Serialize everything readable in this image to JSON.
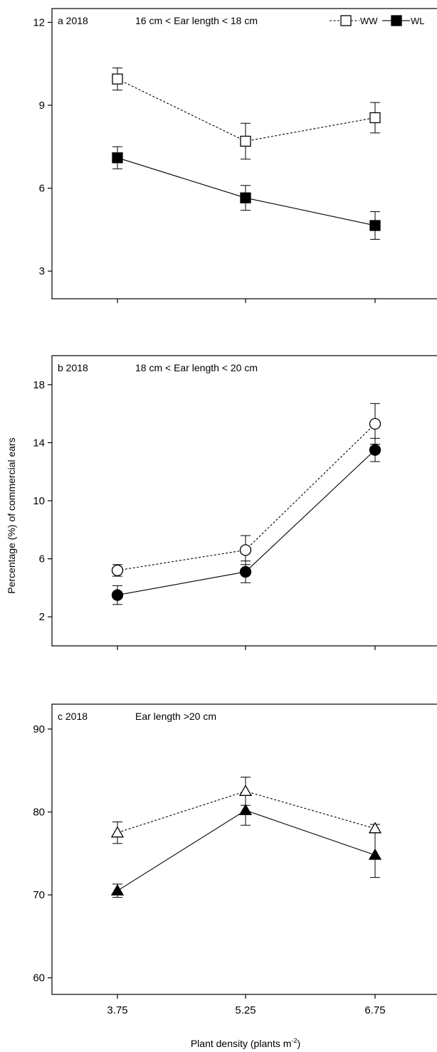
{
  "figure": {
    "ylabel": "Percentage (%) of commercial ears",
    "xlabel_main": "Plant density (plants m",
    "xlabel_sup": "-2",
    "xlabel_end": ")"
  },
  "chart_data": [
    {
      "type": "line",
      "panel": "a 2018",
      "title": "16 cm < Ear length < 18 cm",
      "x": [
        3.75,
        5.25,
        6.75
      ],
      "xticks": [
        "3.75",
        "5.25",
        "6.75"
      ],
      "ylim": [
        2,
        12.5
      ],
      "yticks": [
        3,
        6,
        9,
        12
      ],
      "legend": "top-right",
      "legend_entries": [
        "WW",
        "WL"
      ],
      "marker": "square",
      "series": [
        {
          "name": "WW",
          "style": "dashed",
          "filled": false,
          "values": [
            9.95,
            7.7,
            8.55
          ],
          "errors": [
            0.4,
            0.65,
            0.55
          ]
        },
        {
          "name": "WL",
          "style": "solid",
          "filled": true,
          "values": [
            7.1,
            5.65,
            4.65
          ],
          "errors": [
            0.4,
            0.45,
            0.5
          ]
        }
      ]
    },
    {
      "type": "line",
      "panel": "b 2018",
      "title": "18 cm < Ear length < 20 cm",
      "x": [
        3.75,
        5.25,
        6.75
      ],
      "xticks": [
        "3.75",
        "5.25",
        "6.75"
      ],
      "ylim": [
        0,
        20
      ],
      "yticks": [
        2,
        6,
        10,
        14,
        18
      ],
      "marker": "circle",
      "series": [
        {
          "name": "WW",
          "style": "dashed",
          "filled": false,
          "values": [
            5.2,
            6.6,
            15.3
          ],
          "errors": [
            0.4,
            1.0,
            1.4
          ]
        },
        {
          "name": "WL",
          "style": "solid",
          "filled": true,
          "values": [
            3.5,
            5.1,
            13.5
          ],
          "errors": [
            0.65,
            0.75,
            0.8
          ]
        }
      ]
    },
    {
      "type": "line",
      "panel": "c 2018",
      "title": "Ear length >20 cm",
      "x": [
        3.75,
        5.25,
        6.75
      ],
      "xticks": [
        "3.75",
        "5.25",
        "6.75"
      ],
      "ylim": [
        58,
        93
      ],
      "yticks": [
        60,
        70,
        80,
        90
      ],
      "marker": "triangle",
      "series": [
        {
          "name": "WW",
          "style": "dashed",
          "filled": false,
          "values": [
            77.5,
            82.5,
            78.0
          ],
          "errors": [
            1.3,
            1.7,
            0.5
          ]
        },
        {
          "name": "WL",
          "style": "solid",
          "filled": true,
          "values": [
            70.5,
            80.2,
            74.8
          ],
          "errors": [
            0.8,
            1.8,
            2.7
          ]
        }
      ]
    }
  ]
}
